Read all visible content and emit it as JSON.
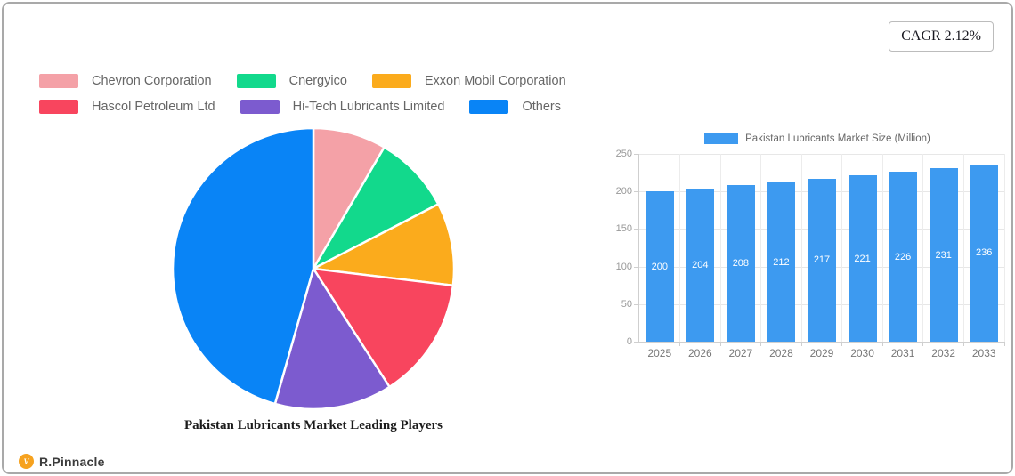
{
  "card": {
    "cagr_label": "CAGR 2.12%"
  },
  "brand": {
    "name": "R.Pinnacle",
    "logo_glyph": "V",
    "logo_color": "#f6a21f"
  },
  "chart_data": [
    {
      "type": "pie",
      "title": "Pakistan Lubricants Market Leading Players",
      "labels": [
        "Chevron Corporation",
        "Cnergyico",
        "Exxon Mobil Corporation",
        "Hascol Petroleum Ltd",
        "Hi-Tech Lubricants Limited",
        "Others"
      ],
      "values": [
        8.4,
        9.0,
        9.5,
        14.0,
        13.5,
        45.6
      ],
      "colors": [
        "#f4a1a7",
        "#12d98c",
        "#fbab1c",
        "#f8455e",
        "#7c5bcf",
        "#0984f6"
      ],
      "start_angle_deg": -90,
      "direction": "clockwise",
      "legend_position": "top-left",
      "legend_rows": [
        [
          0,
          1,
          2
        ],
        [
          3,
          4,
          5
        ]
      ]
    },
    {
      "type": "bar",
      "categories": [
        "2025",
        "2026",
        "2027",
        "2028",
        "2029",
        "2030",
        "2031",
        "2032",
        "2033"
      ],
      "series": [
        {
          "name": "Pakistan Lubricants Market Size (Million)",
          "values": [
            200,
            204,
            208,
            212,
            217,
            221,
            226,
            231,
            236
          ]
        }
      ],
      "bar_color": "#3d9af0",
      "value_label_color": "#ffffff",
      "ylim": [
        0,
        250
      ],
      "yticks": [
        0,
        50,
        100,
        150,
        200,
        250
      ],
      "grid": true,
      "legend_position": "top"
    }
  ]
}
